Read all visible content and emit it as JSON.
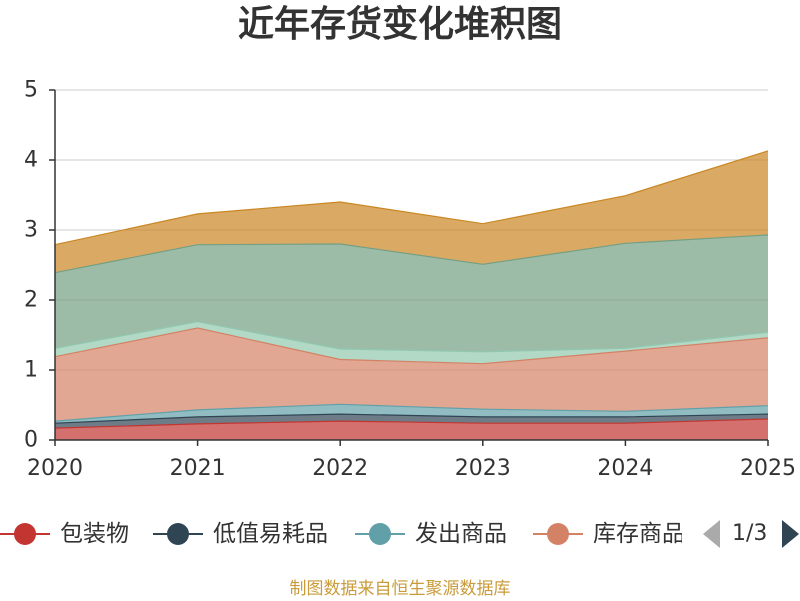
{
  "chart_data": {
    "type": "area",
    "stacked": true,
    "title": "近年存货变化堆积图",
    "x": [
      "2020",
      "2021",
      "2022",
      "2023",
      "2024",
      "2025"
    ],
    "ylim": [
      0,
      5
    ],
    "yticks": [
      0,
      1,
      2,
      3,
      4,
      5
    ],
    "grid": true,
    "legend_position": "bottom",
    "series": [
      {
        "name": "包装物",
        "color": "#c23531",
        "values": [
          0.17,
          0.23,
          0.27,
          0.24,
          0.24,
          0.3
        ]
      },
      {
        "name": "低值易耗品",
        "color": "#2f4554",
        "values": [
          0.07,
          0.1,
          0.1,
          0.09,
          0.09,
          0.07
        ]
      },
      {
        "name": "发出商品",
        "color": "#61a0a8",
        "values": [
          0.03,
          0.1,
          0.14,
          0.11,
          0.08,
          0.12
        ]
      },
      {
        "name": "库存商品",
        "color": "#d48265",
        "values": [
          0.92,
          1.17,
          0.64,
          0.65,
          0.86,
          0.97
        ]
      },
      {
        "color": "#91c7ae",
        "values": [
          0.12,
          0.09,
          0.15,
          0.17,
          0.04,
          0.08
        ]
      },
      {
        "color": "#749f83",
        "values": [
          1.08,
          1.1,
          1.5,
          1.25,
          1.5,
          1.39
        ]
      },
      {
        "color": "#ca8622",
        "values": [
          0.4,
          0.44,
          0.6,
          0.58,
          0.68,
          1.2
        ]
      }
    ]
  },
  "legend": {
    "pager": "1/3"
  },
  "footer": {
    "source": "制图数据来自恒生聚源数据库"
  }
}
